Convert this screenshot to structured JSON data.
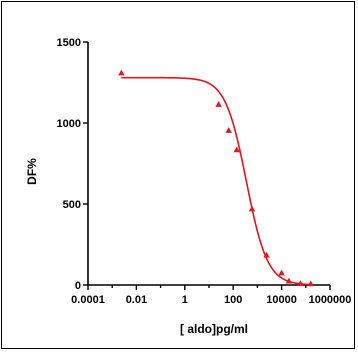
{
  "chart_data": {
    "type": "scatter",
    "title": "",
    "xlabel": "[ aldo]pg/ml",
    "ylabel": "DF%",
    "x_scale": "log",
    "xlim": [
      0.0001,
      1000000
    ],
    "ylim": [
      0,
      1500
    ],
    "x_ticks": [
      0.0001,
      0.01,
      1,
      100,
      10000,
      1000000
    ],
    "x_tick_labels": [
      "0.0001",
      "0.01",
      "1",
      "100",
      "10000",
      "1000000"
    ],
    "y_ticks": [
      0,
      500,
      1000,
      1500
    ],
    "y_tick_labels": [
      "0",
      "500",
      "1000",
      "1500"
    ],
    "grid": false,
    "legend": "none",
    "series": [
      {
        "marker": "triangle",
        "color": "#e8141b",
        "x": [
          0.0024,
          25,
          65,
          140,
          600,
          2400,
          10000,
          20000,
          60000,
          160000
        ],
        "y": [
          1310,
          1115,
          955,
          835,
          470,
          185,
          75,
          25,
          10,
          8
        ]
      }
    ],
    "fit_curve": {
      "color": "#e8141b",
      "top": 1280,
      "bottom": 0,
      "ec50": 350,
      "hill_slope": 1.0,
      "x_range": [
        0.0024,
        150000
      ]
    }
  }
}
